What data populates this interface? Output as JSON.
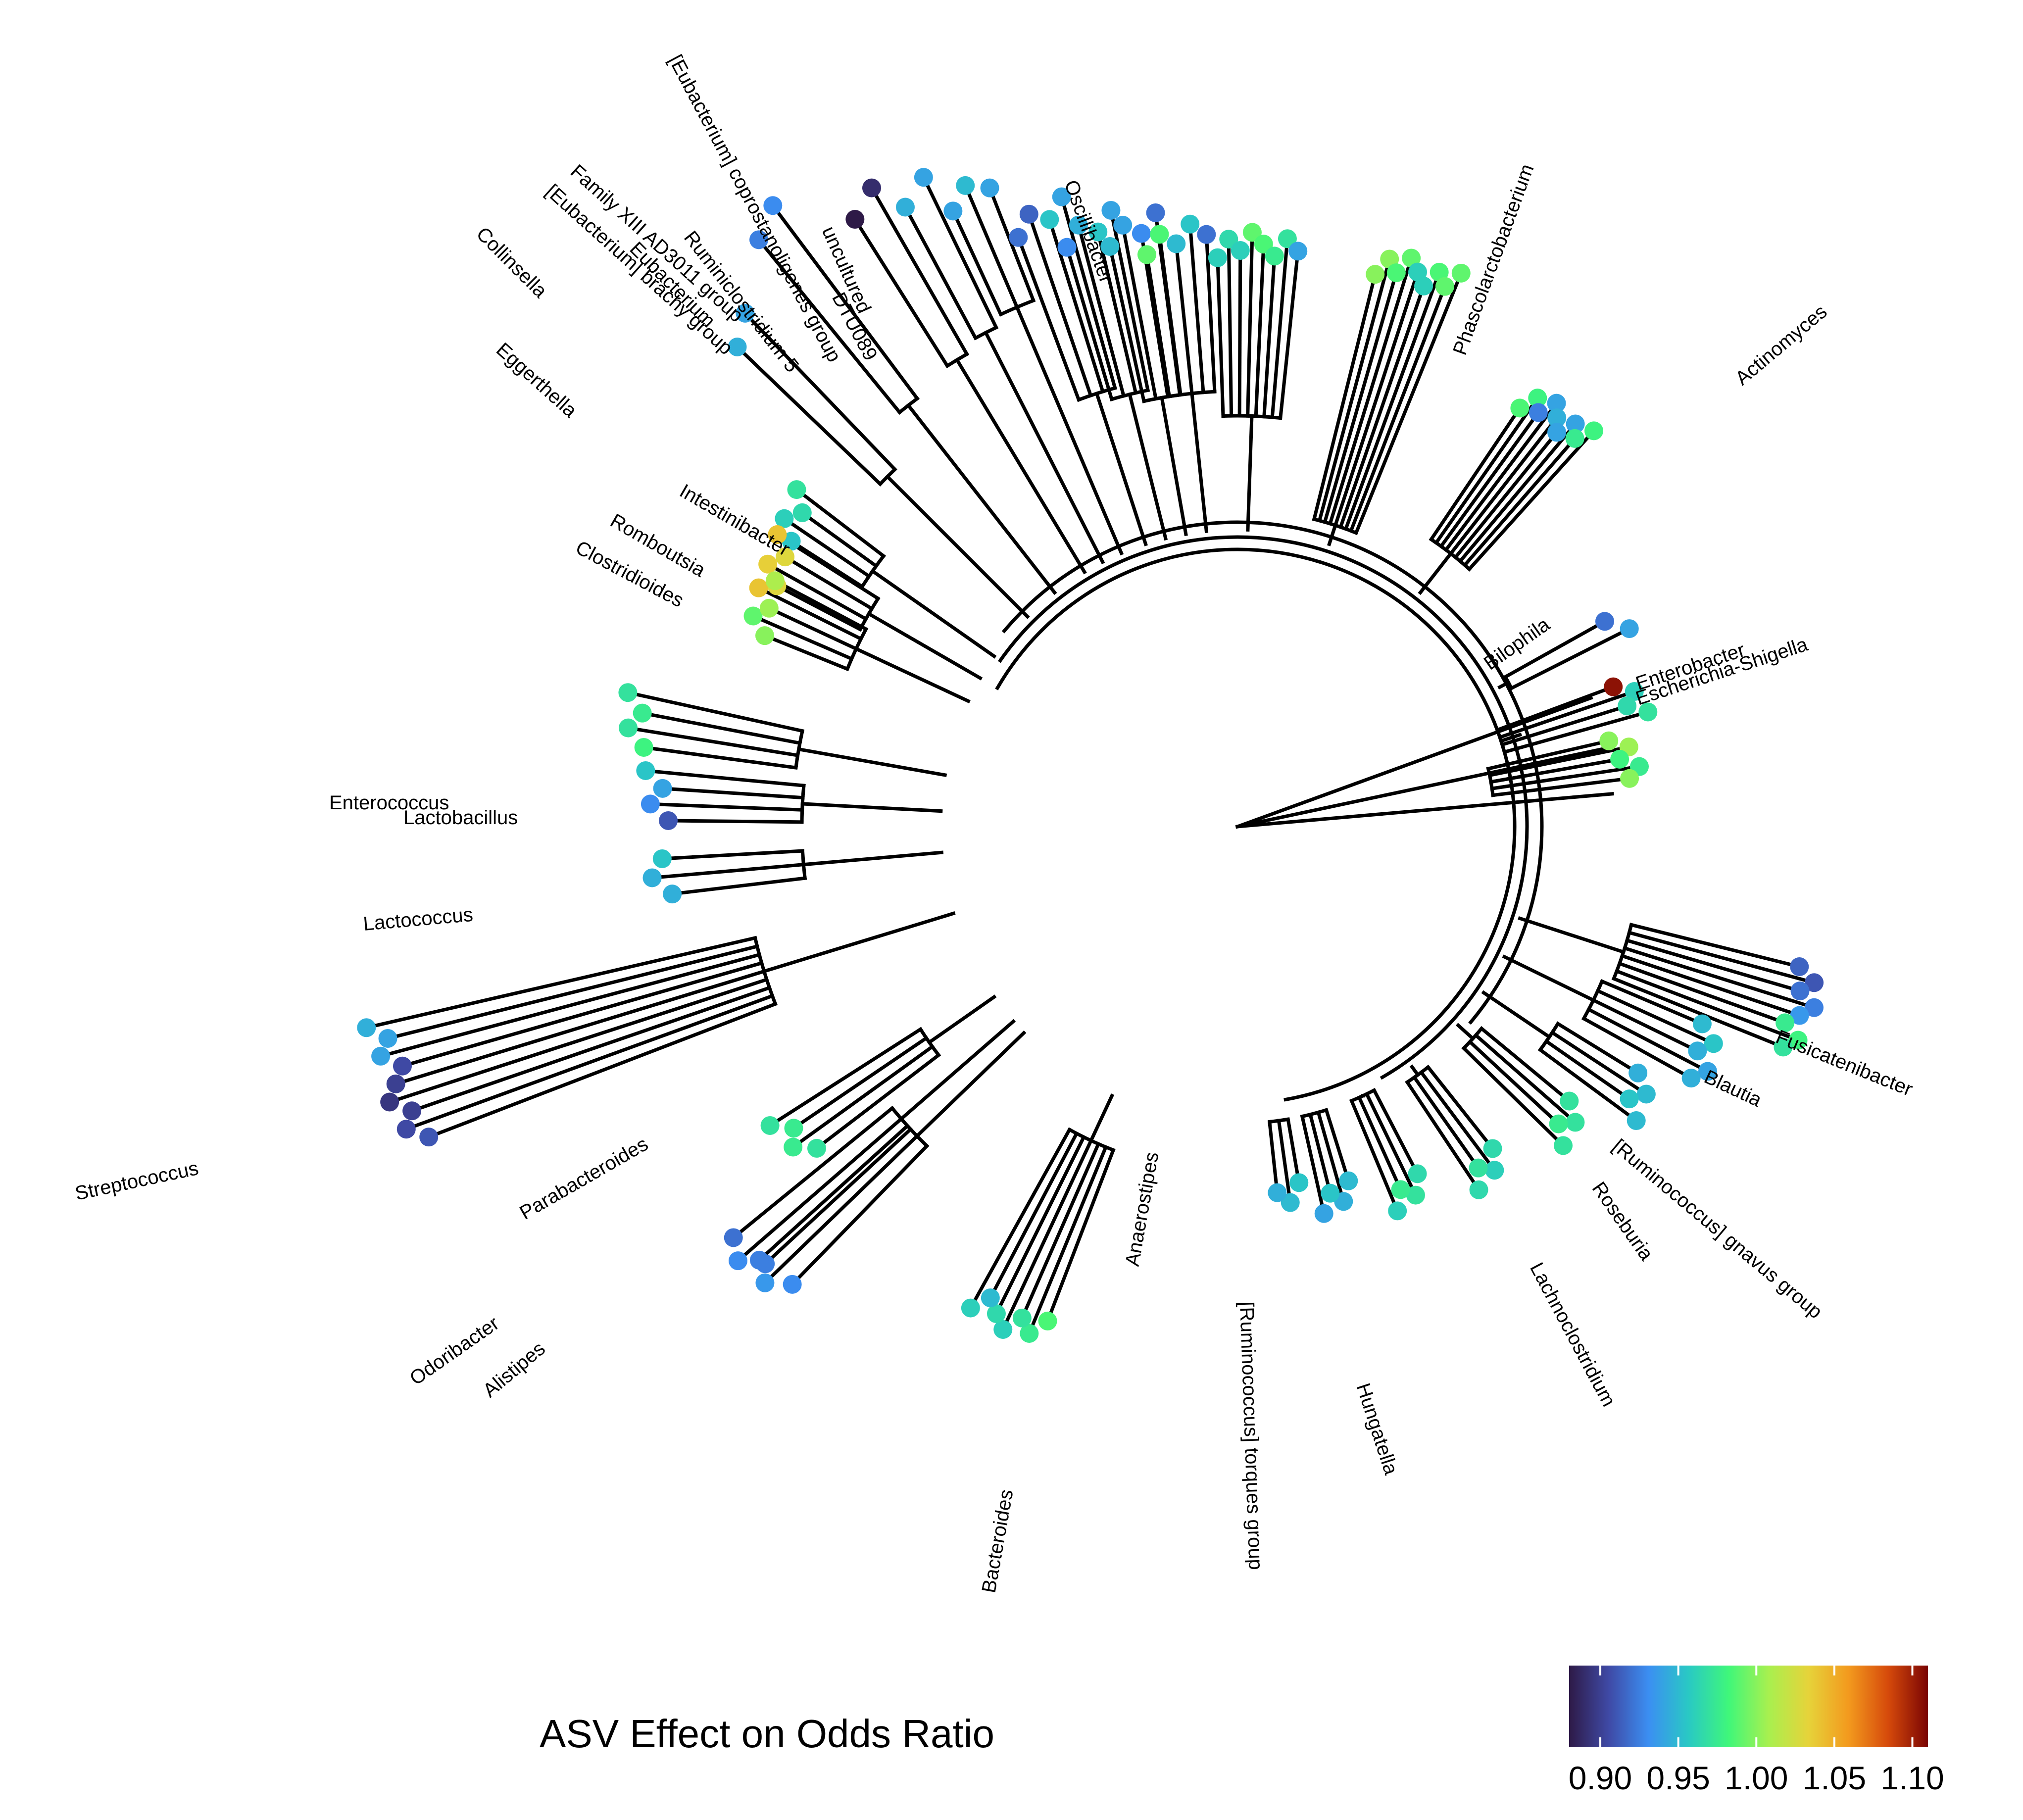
{
  "legend": {
    "title": "ASV Effect on Odds Ratio",
    "ticks": [
      "0.90",
      "0.95",
      "1.00",
      "1.05",
      "1.10"
    ],
    "tick_values": [
      0.9,
      0.95,
      1.0,
      1.05,
      1.1
    ],
    "range": [
      0.88,
      1.11
    ],
    "colormap": [
      "#2e1a47",
      "#3f4aa6",
      "#3b8ff2",
      "#29c9c4",
      "#3ff77a",
      "#a8f04f",
      "#e6d33a",
      "#f39a1e",
      "#d64a0b",
      "#7a0403"
    ]
  },
  "genus_labels": [
    "Collinsella",
    "[Eubacterium] brachy group",
    "Family XIII AD3011 group",
    "Eubacterium",
    "Eggerthella",
    "Ruminiclostridium 5",
    "[Eubacterium] coprostanoligenes group",
    "uncultured",
    "DTU089",
    "Oscillibacter",
    "Phascolarctobacterium",
    "Actinomyces",
    "Intestinibacter",
    "Romboutsia",
    "Clostridioides",
    "Bilophila",
    "Enterobacter",
    "Escherichia-Shigella",
    "Enterococcus",
    "Lactobacillus",
    "Lactococcus",
    "Streptococcus",
    "Fusicatenibacter",
    "Blautia",
    "[Ruminococcus] gnavus group",
    "Roseburia",
    "Lachnoclostridium",
    "Hungatella",
    "[Ruminococcus] torques group",
    "Anaerostipes",
    "Parabacteroides",
    "Odoribacter",
    "Alistipes",
    "Bacteroides"
  ],
  "tips": [
    {
      "genus": "Collinsella",
      "values": [
        0.925,
        0.93
      ]
    },
    {
      "genus": "[Eubacterium] brachy group",
      "values": [
        0.88,
        0.89
      ]
    },
    {
      "genus": "Family XIII AD3011 group",
      "values": [
        0.945,
        0.94
      ]
    },
    {
      "genus": "Eubacterium",
      "values": [
        0.94,
        0.95,
        0.94
      ]
    },
    {
      "genus": "Eggerthella",
      "values": [
        0.945,
        0.94
      ]
    },
    {
      "genus": "Ruminiclostridium 5",
      "values": [
        0.92,
        0.915,
        0.955,
        0.94
      ]
    },
    {
      "genus": "DTU089",
      "values": [
        0.93,
        0.945,
        0.955,
        0.94
      ]
    },
    {
      "genus": "uncultured",
      "values": [
        0.95,
        0.94,
        0.93,
        0.92
      ]
    },
    {
      "genus": "[Eubacterium] coprostanoligenes group",
      "values": [
        0.99,
        0.985,
        0.95,
        0.955,
        0.92
      ]
    },
    {
      "genus": "Oscillibacter",
      "values": [
        0.96,
        0.965,
        0.96,
        0.99,
        0.985,
        0.975,
        0.97,
        0.94
      ]
    },
    {
      "genus": "Phascolarctobacterium",
      "values": [
        1.0,
        1.0,
        0.985,
        0.99,
        0.96,
        0.96,
        0.985,
        0.99,
        0.99
      ]
    },
    {
      "genus": "Actinomyces",
      "values": [
        0.985,
        0.98,
        0.925,
        0.94,
        0.945,
        0.94,
        0.94,
        0.975,
        0.98
      ]
    },
    {
      "genus": "Intestinibacter",
      "values": [
        0.955,
        0.96,
        0.965,
        0.97
      ]
    },
    {
      "genus": "Romboutsia",
      "values": [
        1.03,
        1.035,
        1.03,
        1.04
      ]
    },
    {
      "genus": "Clostridioides",
      "values": [
        1.0,
        0.99,
        1.005,
        1.04,
        1.01
      ]
    },
    {
      "genus": "Bilophila",
      "values": [
        0.92,
        0.94
      ]
    },
    {
      "genus": "Enterobacter",
      "values": [
        1.105,
        0.96,
        0.965,
        0.97
      ]
    },
    {
      "genus": "Escherichia-Shigella",
      "values": [
        1.0,
        1.005,
        0.98,
        0.975,
        1.0
      ]
    },
    {
      "genus": "Enterococcus",
      "values": [
        0.98,
        0.97,
        0.975,
        0.97
      ]
    },
    {
      "genus": "Lactobacillus",
      "values": [
        0.91,
        0.93,
        0.94,
        0.955
      ]
    },
    {
      "genus": "Lactococcus",
      "values": [
        0.945,
        0.945,
        0.955
      ]
    },
    {
      "genus": "Streptococcus",
      "values": [
        0.91,
        0.905,
        0.9,
        0.895,
        0.9,
        0.905,
        0.94,
        0.94,
        0.945
      ]
    },
    {
      "genus": "Fusicatenibacter",
      "values": [
        0.915,
        0.91,
        0.92,
        0.925,
        0.935,
        0.975,
        0.98,
        0.97
      ]
    },
    {
      "genus": "Blautia",
      "values": [
        0.95,
        0.955,
        0.945,
        0.94,
        0.945
      ]
    },
    {
      "genus": "[Ruminococcus] gnavus group",
      "values": [
        0.945,
        0.95,
        0.955,
        0.95
      ]
    },
    {
      "genus": "Roseburia",
      "values": [
        0.97,
        0.97,
        0.975,
        0.97
      ]
    },
    {
      "genus": "Lachnoclostridium",
      "values": [
        0.965,
        0.96,
        0.97,
        0.965
      ]
    },
    {
      "genus": "Hungatella",
      "values": [
        0.965,
        0.97,
        0.975,
        0.96
      ]
    },
    {
      "genus": "[Ruminococcus] torques group",
      "values": [
        0.95,
        0.945,
        0.955,
        0.94
      ]
    },
    {
      "genus": "Anaerostipes",
      "values": [
        0.955,
        0.95,
        0.945
      ]
    },
    {
      "genus": "Parabacteroides",
      "values": [
        0.97,
        0.975,
        0.975,
        0.97
      ]
    },
    {
      "genus": "Odoribacter",
      "values": [
        0.925,
        0.93,
        0.92
      ]
    },
    {
      "genus": "Alistipes",
      "values": [
        0.93,
        0.935,
        0.925
      ]
    },
    {
      "genus": "Bacteroides",
      "values": [
        0.985,
        0.975,
        0.97,
        0.96,
        0.965,
        0.95,
        0.96
      ]
    }
  ]
}
